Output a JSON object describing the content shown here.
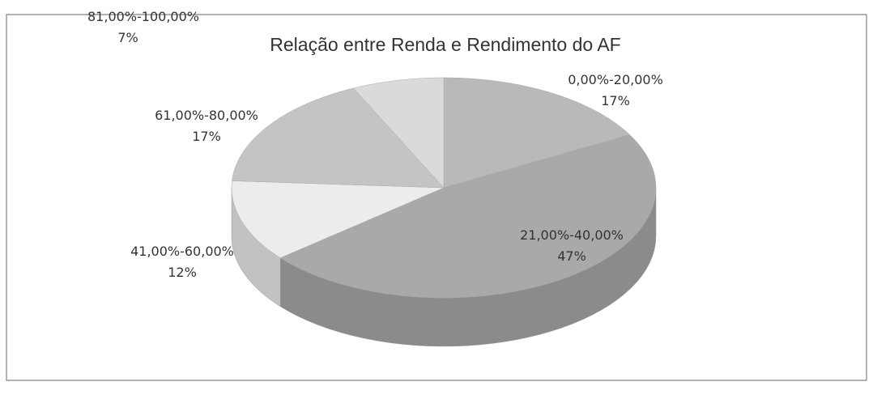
{
  "chart_data": {
    "type": "pie3d",
    "title": "Relação entre Renda e Rendimento do AF",
    "categories": [
      "0,00%-20,00%",
      "21,00%-40,00%",
      "41,00%-60,00%",
      "61,00%-80,00%",
      "81,00%-100,00%"
    ],
    "values": [
      17,
      47,
      12,
      17,
      7
    ],
    "value_labels": [
      "17%",
      "47%",
      "12%",
      "17%",
      "7%"
    ],
    "colors": [
      "#b9b9b9",
      "#a9a9a9",
      "#ececec",
      "#c4c4c4",
      "#dadada"
    ]
  }
}
